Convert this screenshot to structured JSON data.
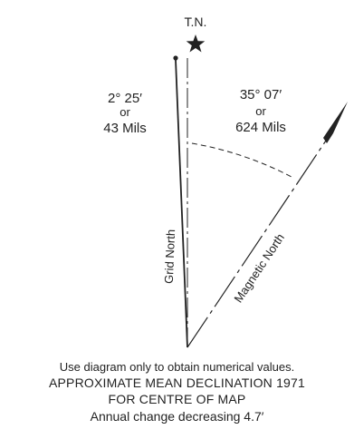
{
  "diagram": {
    "true_north_label": "T.N.",
    "grid_angle": "2° 25′",
    "grid_or": "or",
    "grid_mils": "43 Mils",
    "magnetic_angle": "35° 07′",
    "magnetic_or": "or",
    "magnetic_mils": "624 Mils",
    "grid_north_label": "Grid North",
    "magnetic_north_label": "Magnetic North"
  },
  "captions": {
    "note": "Use diagram only to obtain numerical values.",
    "title": "APPROXIMATE MEAN DECLINATION 1971",
    "centre": "FOR CENTRE OF MAP",
    "annual_change": "Annual change decreasing 4.7′"
  },
  "colors": {
    "ink": "#222222",
    "background": "#ffffff"
  }
}
